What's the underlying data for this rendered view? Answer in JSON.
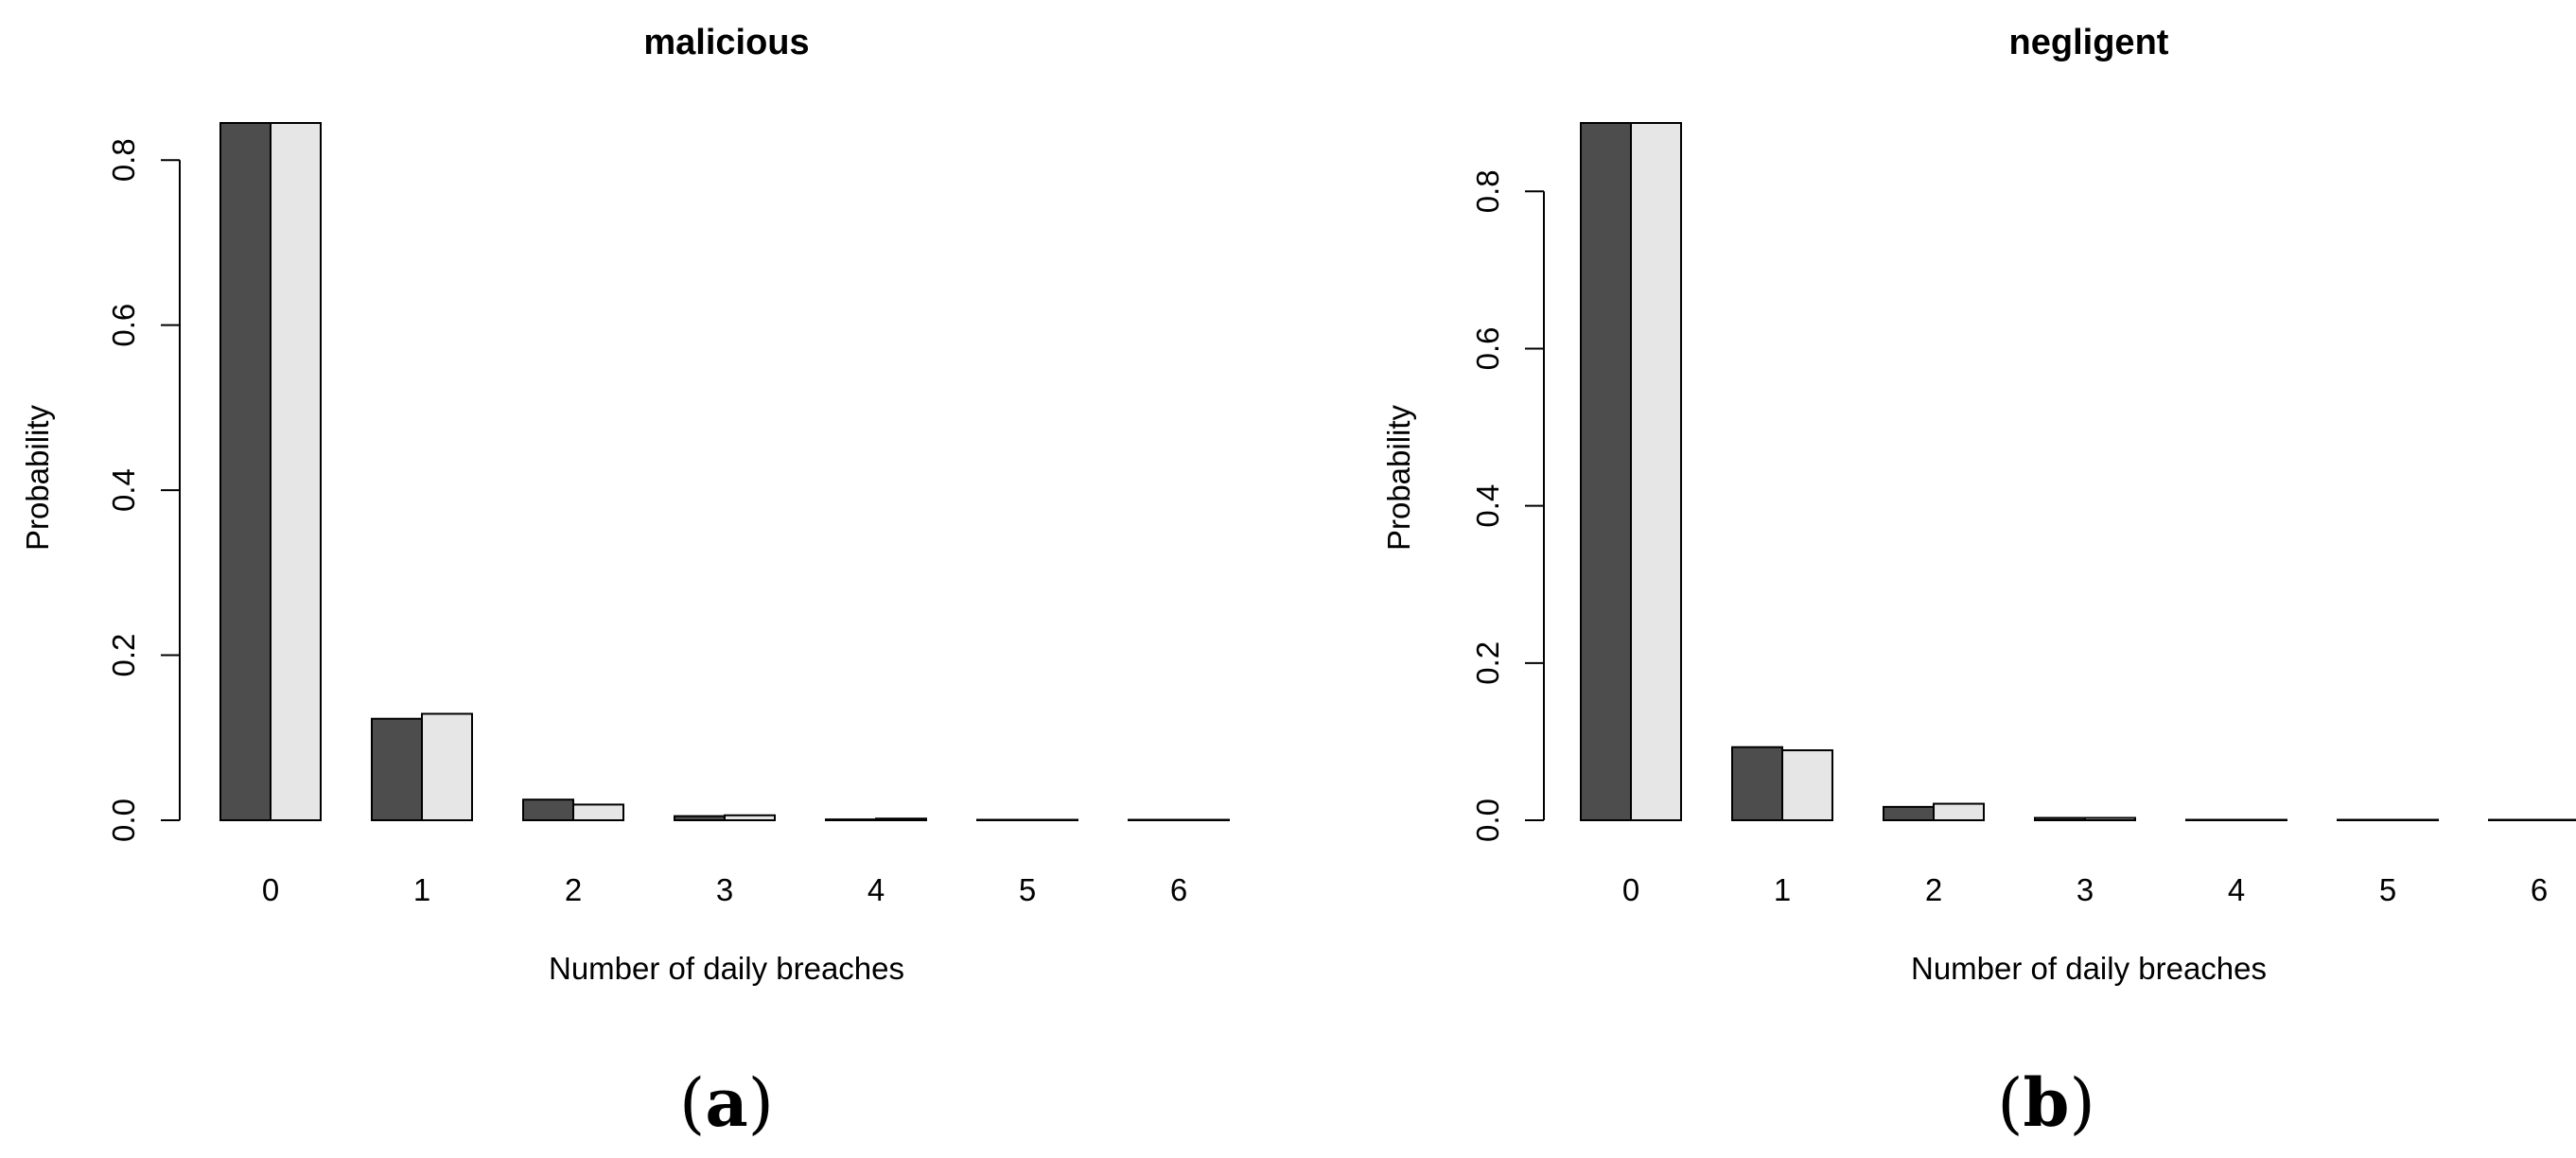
{
  "chart_data": [
    {
      "type": "bar",
      "title": "malicious",
      "subcaption_paren_open": "(",
      "subcaption_letter": "a",
      "subcaption_paren_close": ")",
      "xlabel": "Number of daily breaches",
      "ylabel": "Probability",
      "categories": [
        "0",
        "1",
        "2",
        "3",
        "4",
        "5",
        "6"
      ],
      "yticks": [
        "0.0",
        "0.2",
        "0.4",
        "0.6",
        "0.8"
      ],
      "ylim": [
        0,
        0.85
      ],
      "series": [
        {
          "color": "#4d4d4d",
          "values": [
            0.845,
            0.123,
            0.025,
            0.005,
            0.001,
            0.0005,
            0.0002
          ]
        },
        {
          "color": "#e6e6e6",
          "values": [
            0.845,
            0.129,
            0.019,
            0.006,
            0.002,
            0.0005,
            0.0002
          ]
        }
      ]
    },
    {
      "type": "bar",
      "title": "negligent",
      "subcaption_paren_open": "(",
      "subcaption_letter": "b",
      "subcaption_paren_close": ")",
      "xlabel": "Number of daily breaches",
      "ylabel": "Probability",
      "categories": [
        "0",
        "1",
        "2",
        "3",
        "4",
        "5",
        "6"
      ],
      "yticks": [
        "0.0",
        "0.2",
        "0.4",
        "0.6",
        "0.8"
      ],
      "ylim": [
        0,
        0.89
      ],
      "series": [
        {
          "color": "#4d4d4d",
          "values": [
            0.887,
            0.093,
            0.017,
            0.003,
            0.0005,
            0.0002,
            0.0001
          ]
        },
        {
          "color": "#e6e6e6",
          "values": [
            0.887,
            0.089,
            0.021,
            0.003,
            0.0005,
            0.0002,
            0.0001
          ]
        }
      ]
    }
  ]
}
